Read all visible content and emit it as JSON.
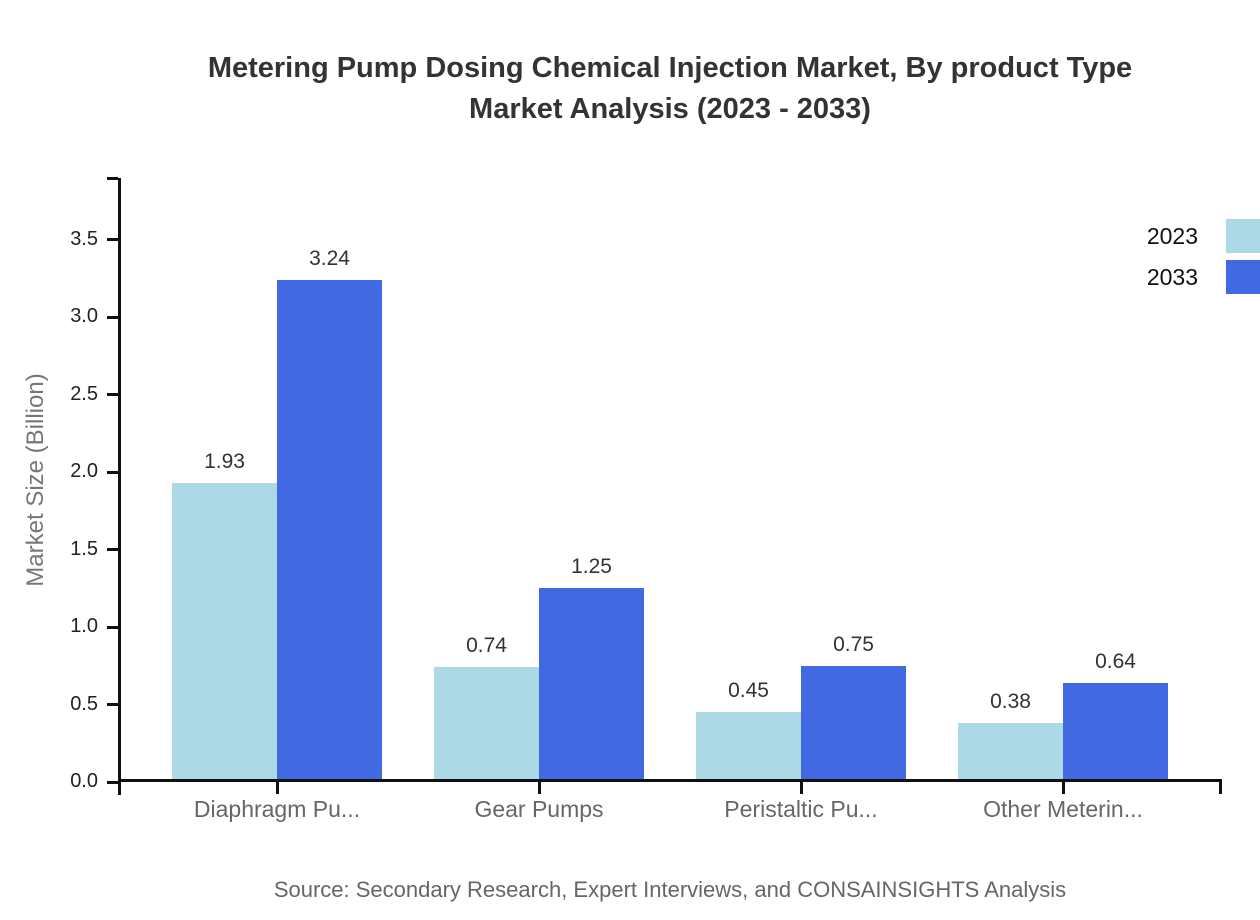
{
  "title": {
    "line1": "Metering Pump Dosing Chemical Injection Market, By product Type",
    "line2": "Market Analysis (2023 - 2033)"
  },
  "source": "Source: Secondary Research, Expert Interviews, and CONSAINSIGHTS Analysis",
  "chart_data": {
    "type": "bar",
    "title": "Metering Pump Dosing Chemical Injection Market, By product Type Market Analysis (2023 - 2033)",
    "categories": [
      "Diaphragm Pu...",
      "Gear Pumps",
      "Peristaltic Pu...",
      "Other Meterin..."
    ],
    "series": [
      {
        "name": "2023",
        "color": "#ADD8E6",
        "values": [
          1.93,
          0.74,
          0.45,
          0.38
        ]
      },
      {
        "name": "2033",
        "color": "#4169E1",
        "values": [
          3.24,
          1.25,
          0.75,
          0.64
        ]
      }
    ],
    "xlabel": "",
    "ylabel": "Market Size (Billion)",
    "yticks": [
      0.0,
      0.5,
      1.0,
      1.5,
      2.0,
      2.5,
      3.0,
      3.5
    ],
    "ylim": [
      0,
      3.9
    ],
    "grid": false,
    "legend_position": "top-right",
    "bar_value_labels": [
      "1.93",
      "3.24",
      "0.74",
      "1.25",
      "0.45",
      "0.75",
      "0.38",
      "0.64"
    ]
  }
}
